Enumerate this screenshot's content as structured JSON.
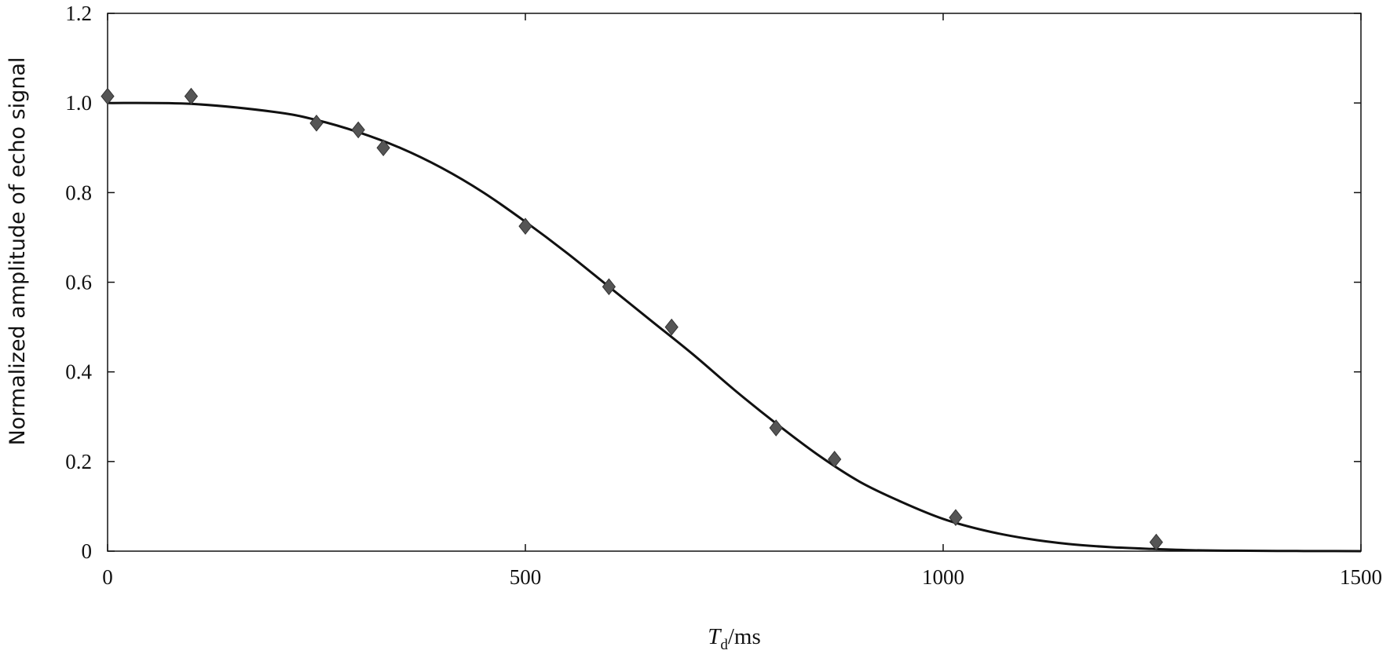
{
  "chart_data": {
    "type": "scatter",
    "title": "",
    "xlabel_italic": "T",
    "xlabel_subscript": "d",
    "xlabel_unit": "/ms",
    "ylabel": "Normalized amplitude of echo signal",
    "xlim": [
      0,
      1500
    ],
    "ylim": [
      0,
      1.2
    ],
    "x_ticks": [
      0,
      500,
      1000,
      1500
    ],
    "x_tick_labels": [
      "0",
      "500",
      "1000",
      "1500"
    ],
    "y_ticks": [
      0,
      0.2,
      0.4,
      0.6,
      0.8,
      1.0,
      1.2
    ],
    "y_tick_labels": [
      "0",
      "0.2",
      "0.4",
      "0.6",
      "0.8",
      "1.0",
      "1.2"
    ],
    "grid": false,
    "marker_color": "#555555",
    "curve_color": "#111111",
    "series": [
      {
        "type": "scatter",
        "marker": "diamond",
        "x": [
          0,
          100,
          250,
          300,
          330,
          500,
          600,
          675,
          800,
          870,
          1015,
          1255
        ],
        "y": [
          1.015,
          1.015,
          0.955,
          0.94,
          0.9,
          0.725,
          0.59,
          0.5,
          0.275,
          0.205,
          0.075,
          0.02
        ]
      },
      {
        "type": "line",
        "x": [
          0,
          100,
          200,
          250,
          300,
          350,
          400,
          450,
          500,
          550,
          600,
          650,
          700,
          750,
          800,
          850,
          900,
          950,
          1000,
          1050,
          1100,
          1150,
          1200,
          1250,
          1300,
          1350,
          1400,
          1450,
          1500
        ],
        "y": [
          1.0,
          0.998,
          0.98,
          0.962,
          0.935,
          0.9,
          0.855,
          0.8,
          0.735,
          0.665,
          0.59,
          0.515,
          0.44,
          0.36,
          0.285,
          0.215,
          0.155,
          0.11,
          0.072,
          0.046,
          0.028,
          0.016,
          0.009,
          0.005,
          0.002,
          0.001,
          0.0005,
          0.0002,
          0.0
        ]
      }
    ]
  }
}
